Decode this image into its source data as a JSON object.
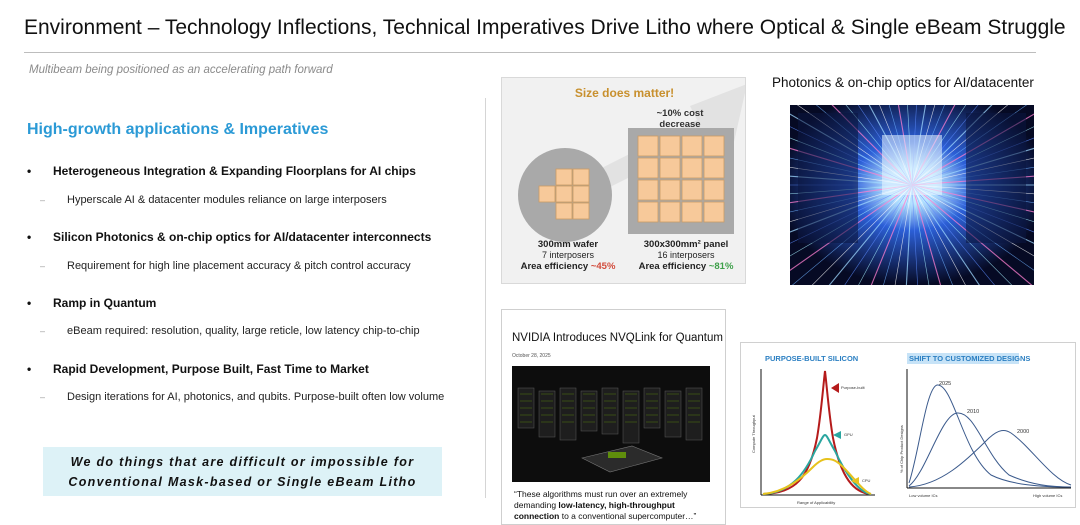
{
  "slide": {
    "title": "Environment – Technology Inflections, Technical Imperatives Drive Litho where Optical & Single eBeam Struggle",
    "subtitle": "Multibeam being positioned as an accelerating path forward"
  },
  "left": {
    "section_head": "High-growth applications & Imperatives",
    "bullet_glyph": "•",
    "sub_glyph": "–",
    "bullets": [
      {
        "title": "Heterogeneous Integration & Expanding Floorplans for AI chips",
        "sub": "Hyperscale AI & datacenter modules reliance on large interposers"
      },
      {
        "title": "Silicon Photonics & on-chip optics for AI/datacenter interconnects",
        "sub": "Requirement for high line placement accuracy & pitch control accuracy"
      },
      {
        "title": "Ramp in Quantum",
        "sub": "eBeam required: resolution, quality, large reticle, low latency chip-to-chip"
      },
      {
        "title": "Rapid Development, Purpose Built, Fast Time to Market",
        "sub": "Design iterations for AI, photonics, and qubits. Purpose-built often low volume"
      }
    ],
    "callout": {
      "line1": "We do things that are difficult or impossible for",
      "line2": "Conventional Mask-based or Single eBeam Litho"
    }
  },
  "size_panel": {
    "title": "Size does matter!",
    "cost_line1": "~10% cost",
    "cost_line2": "decrease",
    "wafer": {
      "name": "300mm wafer",
      "count": "7 interposers",
      "eff_label": "Area efficiency",
      "eff_value": "~45%"
    },
    "panel": {
      "name": "300x300mm² panel",
      "count": "16 interposers",
      "eff_label": "Area efficiency",
      "eff_value": "~81%"
    },
    "colors": {
      "tile": "#f7c99a",
      "tile_border": "#c99b65",
      "wafer": "#a9a9a9",
      "title": "#c8902e"
    }
  },
  "photonics": {
    "label": "Photonics & on-chip optics for AI/datacenter"
  },
  "nvidia": {
    "title": "NVIDIA Introduces NVQLink for Quantum",
    "date": "October 28, 2025",
    "quote_pre": "“These algorithms must run over an extremely demanding ",
    "quote_bold": "low-latency, high-throughput connection",
    "quote_post": " to a conventional supercomputer…”"
  },
  "charts": {
    "left": {
      "title": "PURPOSE-BUILT SILICON",
      "ylabel": "Compute Throughput",
      "xlabel": "Range of Applicability",
      "series": [
        {
          "name": "Purpose-built",
          "color": "#b51b1b"
        },
        {
          "name": "GPU",
          "color": "#2aa6a0"
        },
        {
          "name": "CPU",
          "color": "#e7c21c"
        }
      ]
    },
    "right": {
      "title": "SHIFT TO CUSTOMIZED DESIGNS",
      "ylabel": "% of Chip Product Designs",
      "xlabel_left": "Low volume ICs",
      "xlabel_right": "High volume ICs",
      "series": [
        {
          "name": "2025",
          "color": "#3b5a8c"
        },
        {
          "name": "2010",
          "color": "#3b5a8c"
        },
        {
          "name": "2000",
          "color": "#3b5a8c"
        }
      ]
    },
    "title_color": "#2b7fc2"
  }
}
